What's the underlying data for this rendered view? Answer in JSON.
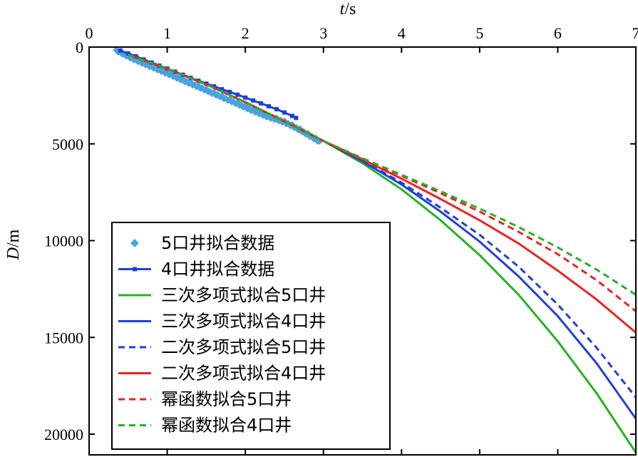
{
  "chart_data": {
    "type": "line",
    "xlabel": {
      "italic": "t",
      "unit": "/s"
    },
    "ylabel": {
      "italic": "D",
      "unit": "/m"
    },
    "x_ticks": [
      "0",
      "1",
      "2",
      "3",
      "4",
      "5",
      "6",
      "7"
    ],
    "y_ticks": [
      "0",
      "5000",
      "10000",
      "15000",
      "20000"
    ],
    "xlim": [
      0,
      7
    ],
    "ylim": [
      0,
      21000
    ],
    "y_inverted": true,
    "x_axis_position": "top",
    "legend_position": "bottom-left",
    "grid": false,
    "scatter_series": [
      {
        "name": "5口井拟合数据",
        "color": "#4aa3df",
        "marker": "diamond",
        "x": [
          0.35,
          0.45,
          0.55,
          0.65,
          0.75,
          0.85,
          0.95,
          1.05,
          1.15,
          1.25,
          1.35,
          1.45,
          1.55,
          1.65,
          1.75,
          1.85,
          1.95,
          2.05,
          2.15,
          2.25,
          2.35,
          2.45,
          2.55,
          2.65,
          2.75,
          2.85,
          2.95
        ],
        "y": [
          150,
          360,
          560,
          740,
          910,
          1080,
          1250,
          1420,
          1600,
          1780,
          1950,
          2120,
          2300,
          2470,
          2650,
          2820,
          3000,
          3180,
          3350,
          3520,
          3650,
          3780,
          3950,
          4150,
          4380,
          4620,
          4860
        ]
      },
      {
        "name": "4口井拟合数据",
        "color": "#1f3fdb",
        "marker": "square-line",
        "x": [
          0.4,
          0.5,
          0.6,
          0.7,
          0.8,
          0.9,
          1.0,
          1.1,
          1.2,
          1.3,
          1.4,
          1.5,
          1.6,
          1.7,
          1.8,
          1.9,
          2.0,
          2.1,
          2.2,
          2.3,
          2.4,
          2.5,
          2.6,
          2.65
        ],
        "y": [
          180,
          330,
          480,
          640,
          800,
          960,
          1110,
          1270,
          1430,
          1590,
          1740,
          1890,
          2030,
          2180,
          2320,
          2460,
          2610,
          2760,
          2910,
          3060,
          3210,
          3380,
          3560,
          3660
        ]
      }
    ],
    "series": [
      {
        "name": "三次多项式拟合5口井",
        "color": "#22b422",
        "dash": "solid",
        "x": [
          0.5,
          1,
          1.5,
          2,
          2.5,
          3,
          3.5,
          4,
          4.5,
          5,
          5.5,
          6,
          6.5,
          7
        ],
        "y": [
          400,
          1120,
          1930,
          2850,
          3830,
          4850,
          6000,
          7350,
          8950,
          10750,
          12800,
          15200,
          17900,
          20950
        ]
      },
      {
        "name": "三次多项式拟合4口井",
        "color": "#1f3fdb",
        "dash": "solid",
        "x": [
          0.5,
          1,
          1.5,
          2,
          2.5,
          3,
          3.5,
          4,
          4.5,
          5,
          5.5,
          6,
          6.5,
          7
        ],
        "y": [
          400,
          1120,
          1930,
          2850,
          3830,
          4850,
          5900,
          7100,
          8500,
          10050,
          11850,
          13900,
          16350,
          19200
        ]
      },
      {
        "name": "二次多项式拟合5口井",
        "color": "#1f3fdb",
        "dash": "dashed",
        "x": [
          0.5,
          1,
          1.5,
          2,
          2.5,
          3,
          3.5,
          4,
          4.5,
          5,
          5.5,
          6,
          6.5,
          7
        ],
        "y": [
          400,
          1120,
          1930,
          2850,
          3830,
          4850,
          5880,
          7000,
          8300,
          9700,
          11350,
          13300,
          15550,
          18100
        ]
      },
      {
        "name": "二次多项式拟合4口井",
        "color": "#ee2222",
        "dash": "solid",
        "x": [
          0.5,
          1,
          1.5,
          2,
          2.5,
          3,
          3.5,
          4,
          4.5,
          5,
          5.5,
          6,
          6.5,
          7
        ],
        "y": [
          400,
          1120,
          1930,
          2850,
          3830,
          4850,
          5800,
          6800,
          7850,
          8950,
          10150,
          11550,
          13050,
          14750
        ]
      },
      {
        "name": "幂函数拟合5口井",
        "color": "#ee2222",
        "dash": "dashed",
        "x": [
          0.5,
          1,
          1.5,
          2,
          2.5,
          3,
          3.5,
          4,
          4.5,
          5,
          5.5,
          6,
          6.5,
          7
        ],
        "y": [
          400,
          1120,
          1930,
          2850,
          3830,
          4850,
          5760,
          6650,
          7550,
          8500,
          9550,
          10700,
          12050,
          13650
        ]
      },
      {
        "name": "幂函数拟合4口井",
        "color": "#22b422",
        "dash": "dashed",
        "x": [
          0.5,
          1,
          1.5,
          2,
          2.5,
          3,
          3.5,
          4,
          4.5,
          5,
          5.5,
          6,
          6.5,
          7
        ],
        "y": [
          400,
          1120,
          1930,
          2850,
          3830,
          4850,
          5740,
          6600,
          7450,
          8350,
          9300,
          10350,
          11500,
          12800
        ]
      }
    ]
  }
}
